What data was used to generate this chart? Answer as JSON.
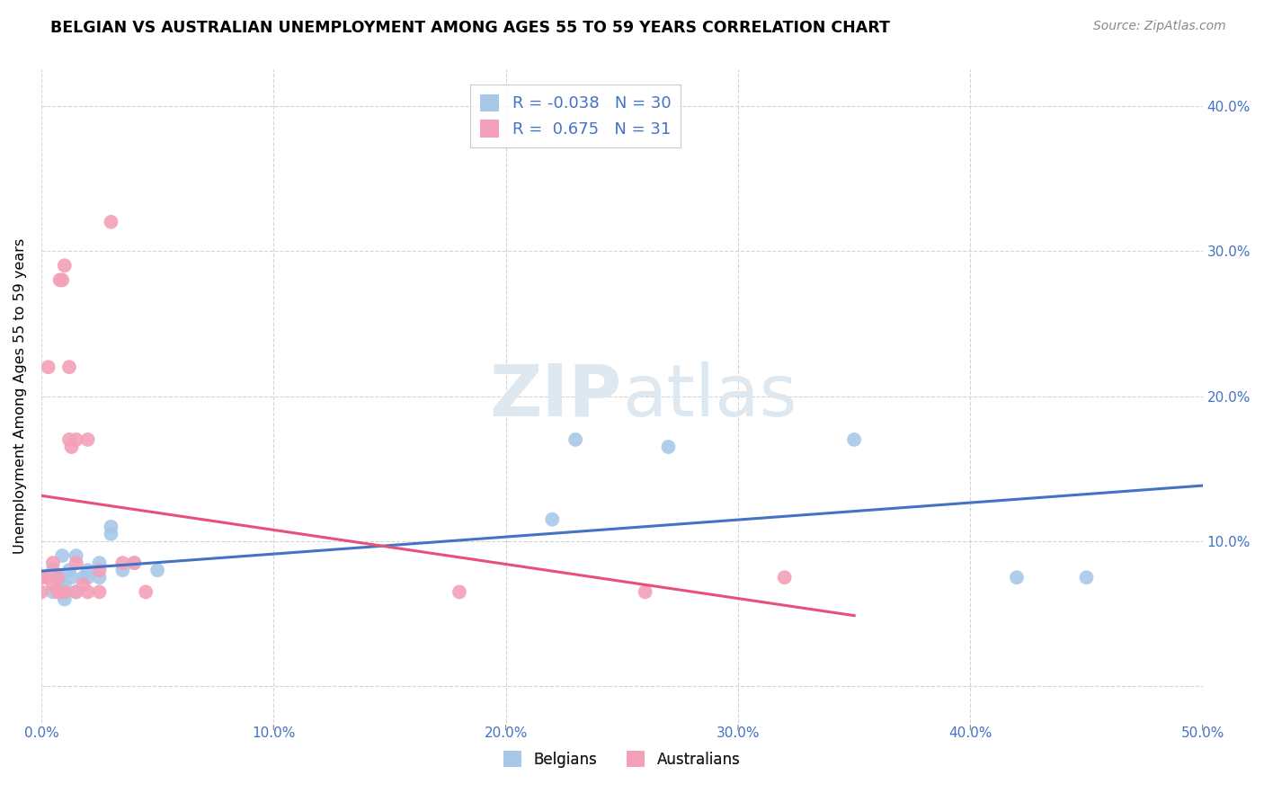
{
  "title": "BELGIAN VS AUSTRALIAN UNEMPLOYMENT AMONG AGES 55 TO 59 YEARS CORRELATION CHART",
  "source": "Source: ZipAtlas.com",
  "ylabel": "Unemployment Among Ages 55 to 59 years",
  "xlim": [
    0.0,
    0.5
  ],
  "ylim": [
    -0.025,
    0.425
  ],
  "xticks": [
    0.0,
    0.1,
    0.2,
    0.3,
    0.4,
    0.5
  ],
  "yticks": [
    0.0,
    0.1,
    0.2,
    0.3,
    0.4
  ],
  "xtick_labels": [
    "0.0%",
    "10.0%",
    "20.0%",
    "30.0%",
    "40.0%",
    "50.0%"
  ],
  "ytick_labels": [
    "",
    "10.0%",
    "20.0%",
    "30.0%",
    "40.0%"
  ],
  "belgians_x": [
    0.0,
    0.005,
    0.005,
    0.008,
    0.008,
    0.009,
    0.01,
    0.01,
    0.01,
    0.012,
    0.013,
    0.015,
    0.015,
    0.018,
    0.02,
    0.02,
    0.025,
    0.025,
    0.03,
    0.03,
    0.035,
    0.04,
    0.05,
    0.22,
    0.23,
    0.27,
    0.35,
    0.42,
    0.45
  ],
  "belgians_y": [
    0.075,
    0.065,
    0.08,
    0.07,
    0.075,
    0.09,
    0.06,
    0.065,
    0.07,
    0.08,
    0.075,
    0.09,
    0.065,
    0.075,
    0.075,
    0.08,
    0.075,
    0.085,
    0.105,
    0.11,
    0.08,
    0.085,
    0.08,
    0.115,
    0.17,
    0.165,
    0.17,
    0.075,
    0.075
  ],
  "australians_x": [
    0.0,
    0.0,
    0.002,
    0.003,
    0.005,
    0.005,
    0.007,
    0.007,
    0.008,
    0.008,
    0.009,
    0.01,
    0.01,
    0.012,
    0.012,
    0.013,
    0.015,
    0.015,
    0.015,
    0.018,
    0.02,
    0.02,
    0.025,
    0.025,
    0.03,
    0.035,
    0.04,
    0.045,
    0.18,
    0.26,
    0.32
  ],
  "australians_y": [
    0.065,
    0.075,
    0.075,
    0.22,
    0.07,
    0.085,
    0.065,
    0.075,
    0.065,
    0.28,
    0.28,
    0.065,
    0.29,
    0.22,
    0.17,
    0.165,
    0.065,
    0.085,
    0.17,
    0.07,
    0.065,
    0.17,
    0.065,
    0.08,
    0.32,
    0.085,
    0.085,
    0.065,
    0.065,
    0.065,
    0.075
  ],
  "belgian_color": "#a8c8e8",
  "australian_color": "#f4a0b8",
  "belgian_line_color": "#4472c4",
  "australian_line_color": "#e8507a",
  "background_color": "#ffffff",
  "grid_color": "#d0d0d0",
  "watermark_color": "#dde8f0"
}
